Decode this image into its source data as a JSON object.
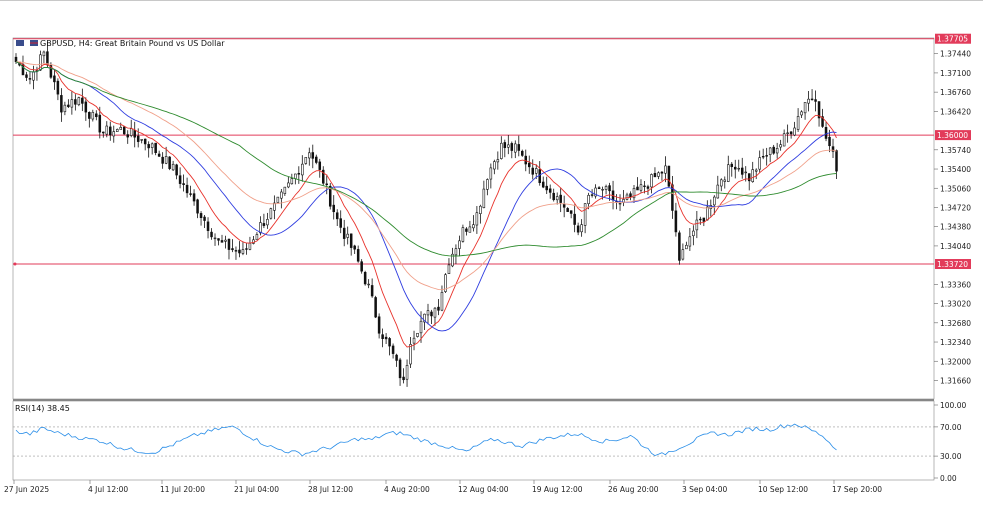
{
  "chart_data": {
    "type": "candlestick",
    "title": "GBPUSD, H4:  Great Britain Pound vs US Dollar",
    "price_axis": {
      "ylim": [
        1.3135,
        1.377
      ],
      "ticks": [
        "1.37440",
        "1.37100",
        "1.36760",
        "1.36420",
        "1.35740",
        "1.35400",
        "1.35060",
        "1.34720",
        "1.34380",
        "1.34040",
        "1.33360",
        "1.33020",
        "1.32680",
        "1.32340",
        "1.32000",
        "1.31660"
      ]
    },
    "x_ticks": [
      "27 Jun 2025",
      "4 Jul 12:00",
      "11 Jul 20:00",
      "21 Jul 04:00",
      "28 Jul 12:00",
      "4 Aug 20:00",
      "12 Aug 04:00",
      "19 Aug 12:00",
      "26 Aug 20:00",
      "3 Sep 04:00",
      "10 Sep 12:00",
      "17 Sep 20:00"
    ],
    "levels": [
      {
        "label": "1.37705",
        "value": 1.37705,
        "color": "#e23b5a"
      },
      {
        "label": "1.36000",
        "value": 1.36,
        "color": "#e23b5a"
      },
      {
        "label": "1.33720",
        "value": 1.3372,
        "color": "#e23b5a"
      }
    ],
    "moving_averages": [
      {
        "color": "#e8322b",
        "key": "fast"
      },
      {
        "color": "#2f3de0",
        "key": "mid"
      },
      {
        "color": "#f0a08a",
        "key": "slow"
      },
      {
        "color": "#2e8b2e",
        "key": "long"
      }
    ],
    "close_path": [
      [
        0,
        1.373
      ],
      [
        4,
        1.37
      ],
      [
        8,
        1.3745
      ],
      [
        13,
        1.365
      ],
      [
        18,
        1.3665
      ],
      [
        25,
        1.3605
      ],
      [
        30,
        1.361
      ],
      [
        38,
        1.3585
      ],
      [
        45,
        1.354
      ],
      [
        52,
        1.347
      ],
      [
        58,
        1.341
      ],
      [
        65,
        1.339
      ],
      [
        70,
        1.344
      ],
      [
        75,
        1.348
      ],
      [
        80,
        1.353
      ],
      [
        84,
        1.3575
      ],
      [
        88,
        1.352
      ],
      [
        92,
        1.345
      ],
      [
        97,
        1.339
      ],
      [
        101,
        1.333
      ],
      [
        104,
        1.326
      ],
      [
        108,
        1.321
      ],
      [
        111,
        1.316
      ],
      [
        113,
        1.324
      ],
      [
        116,
        1.327
      ],
      [
        121,
        1.33
      ],
      [
        124,
        1.338
      ],
      [
        128,
        1.343
      ],
      [
        132,
        1.346
      ],
      [
        135,
        1.353
      ],
      [
        139,
        1.358
      ],
      [
        143,
        1.3575
      ],
      [
        148,
        1.354
      ],
      [
        152,
        1.351
      ],
      [
        157,
        1.3475
      ],
      [
        161,
        1.343
      ],
      [
        164,
        1.349
      ],
      [
        168,
        1.3505
      ],
      [
        173,
        1.3475
      ],
      [
        178,
        1.35
      ],
      [
        182,
        1.352
      ],
      [
        186,
        1.354
      ],
      [
        189,
        1.343
      ],
      [
        190,
        1.337
      ],
      [
        192,
        1.3415
      ],
      [
        197,
        1.3455
      ],
      [
        202,
        1.3525
      ],
      [
        206,
        1.355
      ],
      [
        210,
        1.3525
      ],
      [
        214,
        1.356
      ],
      [
        219,
        1.3585
      ],
      [
        223,
        1.362
      ],
      [
        226,
        1.366
      ],
      [
        229,
        1.367
      ],
      [
        231,
        1.361
      ],
      [
        233,
        1.358
      ],
      [
        235,
        1.3545
      ]
    ],
    "rsi": {
      "label": "RSI(14) 38.45",
      "ticks": [
        "100.00",
        "70.00",
        "30.00",
        "0.00"
      ],
      "ylim": [
        0,
        100
      ],
      "levels": [
        70,
        30
      ],
      "last": 38.45,
      "values": [
        64,
        60,
        68,
        62,
        58,
        54,
        52,
        46,
        40,
        37,
        35,
        42,
        50,
        58,
        63,
        68,
        70,
        58,
        48,
        40,
        36,
        33,
        38,
        42,
        48,
        54,
        52,
        60,
        62,
        56,
        50,
        46,
        40,
        36,
        47,
        53,
        48,
        44,
        50,
        55,
        58,
        61,
        55,
        50,
        53,
        58,
        42,
        30,
        38,
        46,
        55,
        62,
        59,
        64,
        68,
        66,
        71,
        74,
        67,
        58,
        38.45
      ]
    }
  }
}
